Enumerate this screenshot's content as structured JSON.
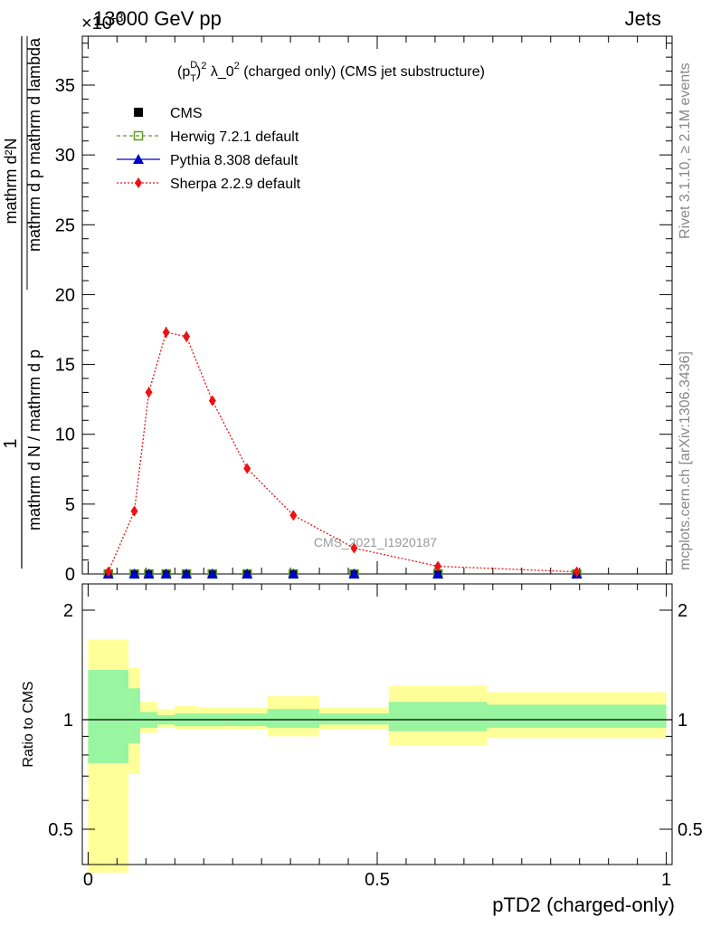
{
  "header": {
    "left": "13000 GeV pp",
    "right": "Jets",
    "exponent": "×10^-3"
  },
  "side_labels": {
    "rivet": "Rivet 3.1.10, ≥ 2.1M events",
    "mcplots": "mcplots.cern.ch [arXiv:1306.3436]"
  },
  "watermark": "CMS_2021_I1920187",
  "chart_data": [
    {
      "type": "line",
      "title": "(p_T^D)^2 λ_0^2 (charged only) (CMS jet substructure)",
      "title_parts": {
        "base": "(p",
        "sub": "T",
        "sup": "D",
        "rest": ")",
        "pow": "2",
        "tail": " λ_0",
        "pow2": "2",
        "end": " (charged only) (CMS jet substructure)"
      },
      "ylabel_numerator": "mathrm d²N",
      "ylabel_denominator": "mathrm d p_T mathrm d lambda",
      "ylabel_prefix": "1",
      "ylabel_prefix_den": "mathrm d N / mathrm d p_T",
      "xlim": [
        -0.01,
        1.01
      ],
      "ylim": [
        0,
        38.5
      ],
      "y_scale_factor": 0.001,
      "yticks": [
        0,
        5,
        10,
        15,
        20,
        25,
        30,
        35
      ],
      "grid": false,
      "legend_position": "top-left",
      "series": [
        {
          "name": "CMS",
          "color": "#000000",
          "marker": "square",
          "x": [
            0.035,
            0.08,
            0.105,
            0.135,
            0.17,
            0.215,
            0.275,
            0.355,
            0.46,
            0.605,
            0.845
          ],
          "y": [
            0,
            0,
            0,
            0,
            0,
            0,
            0,
            0,
            0,
            0,
            0
          ]
        },
        {
          "name": "Herwig 7.2.1 default",
          "color": "#5a9f1c",
          "marker": "open-square",
          "x": [
            0.035,
            0.08,
            0.105,
            0.135,
            0.17,
            0.215,
            0.275,
            0.355,
            0.46,
            0.605,
            0.845
          ],
          "y": [
            0,
            0,
            0,
            0,
            0,
            0,
            0,
            0,
            0,
            0,
            0
          ]
        },
        {
          "name": "Pythia 8.308 default",
          "color": "#0000cc",
          "marker": "triangle",
          "x": [
            0.035,
            0.08,
            0.105,
            0.135,
            0.17,
            0.215,
            0.275,
            0.355,
            0.46,
            0.605,
            0.845
          ],
          "y": [
            0,
            0,
            0,
            0,
            0,
            0,
            0,
            0,
            0,
            0,
            0
          ]
        },
        {
          "name": "Sherpa 2.2.9 default",
          "color": "#ee1111",
          "marker": "diamond",
          "x": [
            0.035,
            0.08,
            0.105,
            0.135,
            0.17,
            0.215,
            0.275,
            0.355,
            0.46,
            0.605,
            0.845
          ],
          "y": [
            0.15,
            4.5,
            13.0,
            17.3,
            17.0,
            12.4,
            7.55,
            4.2,
            1.85,
            0.55,
            0.15
          ],
          "yerr": [
            0.05,
            0.3,
            0.4,
            0.4,
            0.4,
            0.3,
            0.2,
            0.2,
            0.1,
            0.05,
            0.05
          ]
        }
      ]
    },
    {
      "type": "area",
      "ylabel": "Ratio to CMS",
      "xlabel": "pTD2 (charged-only)",
      "xlim": [
        -0.01,
        1.01
      ],
      "ylim": [
        0.35,
        2.3
      ],
      "xticks": [
        0,
        0.5,
        1
      ],
      "xtick_labels": [
        "0",
        "0.5",
        "1"
      ],
      "yticks": [
        0.5,
        1,
        2
      ],
      "ytick_labels": [
        "0.5",
        "1",
        "2"
      ],
      "reference": 1,
      "bands": [
        {
          "x0": 0.0,
          "x1": 0.07,
          "inner_lo": 0.76,
          "inner_hi": 1.37,
          "outer_lo": 0.38,
          "outer_hi": 1.66
        },
        {
          "x0": 0.07,
          "x1": 0.09,
          "inner_lo": 0.86,
          "inner_hi": 1.22,
          "outer_lo": 0.71,
          "outer_hi": 1.39
        },
        {
          "x0": 0.09,
          "x1": 0.12,
          "inner_lo": 0.95,
          "inner_hi": 1.05,
          "outer_lo": 0.92,
          "outer_hi": 1.12
        },
        {
          "x0": 0.12,
          "x1": 0.15,
          "inner_lo": 0.97,
          "inner_hi": 1.03,
          "outer_lo": 0.95,
          "outer_hi": 1.07
        },
        {
          "x0": 0.15,
          "x1": 0.19,
          "inner_lo": 0.96,
          "inner_hi": 1.04,
          "outer_lo": 0.94,
          "outer_hi": 1.09
        },
        {
          "x0": 0.19,
          "x1": 0.24,
          "inner_lo": 0.96,
          "inner_hi": 1.04,
          "outer_lo": 0.94,
          "outer_hi": 1.08
        },
        {
          "x0": 0.24,
          "x1": 0.31,
          "inner_lo": 0.96,
          "inner_hi": 1.04,
          "outer_lo": 0.94,
          "outer_hi": 1.08
        },
        {
          "x0": 0.31,
          "x1": 0.4,
          "inner_lo": 0.95,
          "inner_hi": 1.07,
          "outer_lo": 0.9,
          "outer_hi": 1.16
        },
        {
          "x0": 0.4,
          "x1": 0.52,
          "inner_lo": 0.97,
          "inner_hi": 1.04,
          "outer_lo": 0.94,
          "outer_hi": 1.08
        },
        {
          "x0": 0.52,
          "x1": 0.69,
          "inner_lo": 0.93,
          "inner_hi": 1.12,
          "outer_lo": 0.85,
          "outer_hi": 1.24
        },
        {
          "x0": 0.69,
          "x1": 1.0,
          "inner_lo": 0.95,
          "inner_hi": 1.1,
          "outer_lo": 0.89,
          "outer_hi": 1.19
        }
      ],
      "band_colors": {
        "inner": "#98f5a0",
        "outer": "#ffff99"
      }
    }
  ]
}
